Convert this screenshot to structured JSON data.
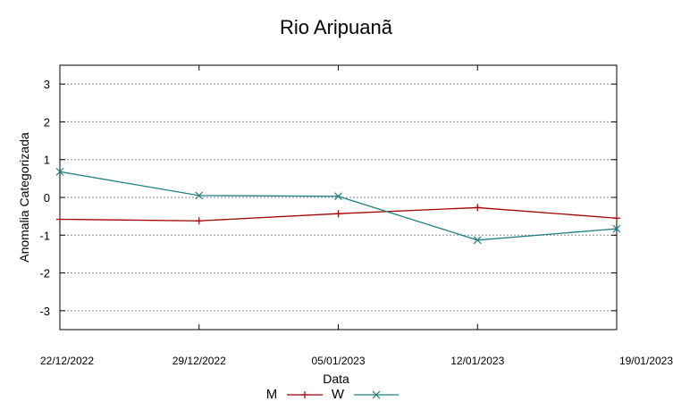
{
  "chart_data": {
    "type": "line",
    "title": "Rio Aripuanã",
    "xlabel": "Data",
    "ylabel": "Anomalia Categorizada",
    "categories": [
      "22/12/2022",
      "29/12/2022",
      "05/01/2023",
      "12/01/2023",
      "19/01/2023"
    ],
    "ylim": [
      -3.5,
      3.5
    ],
    "yticks": [
      "3",
      "2",
      "1",
      "0",
      "-1",
      "-2",
      "-3"
    ],
    "ytick_values": [
      3,
      2,
      1,
      0,
      -1,
      -2,
      -3
    ],
    "grid": true,
    "legend_position": "bottom-center",
    "series": [
      {
        "name": "M",
        "values": [
          -0.58,
          -0.62,
          -0.43,
          -0.27,
          -0.55
        ],
        "color": "#a00000",
        "marker": "plus"
      },
      {
        "name": "W",
        "values": [
          0.68,
          0.05,
          0.03,
          -1.13,
          -0.83
        ],
        "color": "#1f7f7f",
        "marker": "cross"
      }
    ]
  }
}
